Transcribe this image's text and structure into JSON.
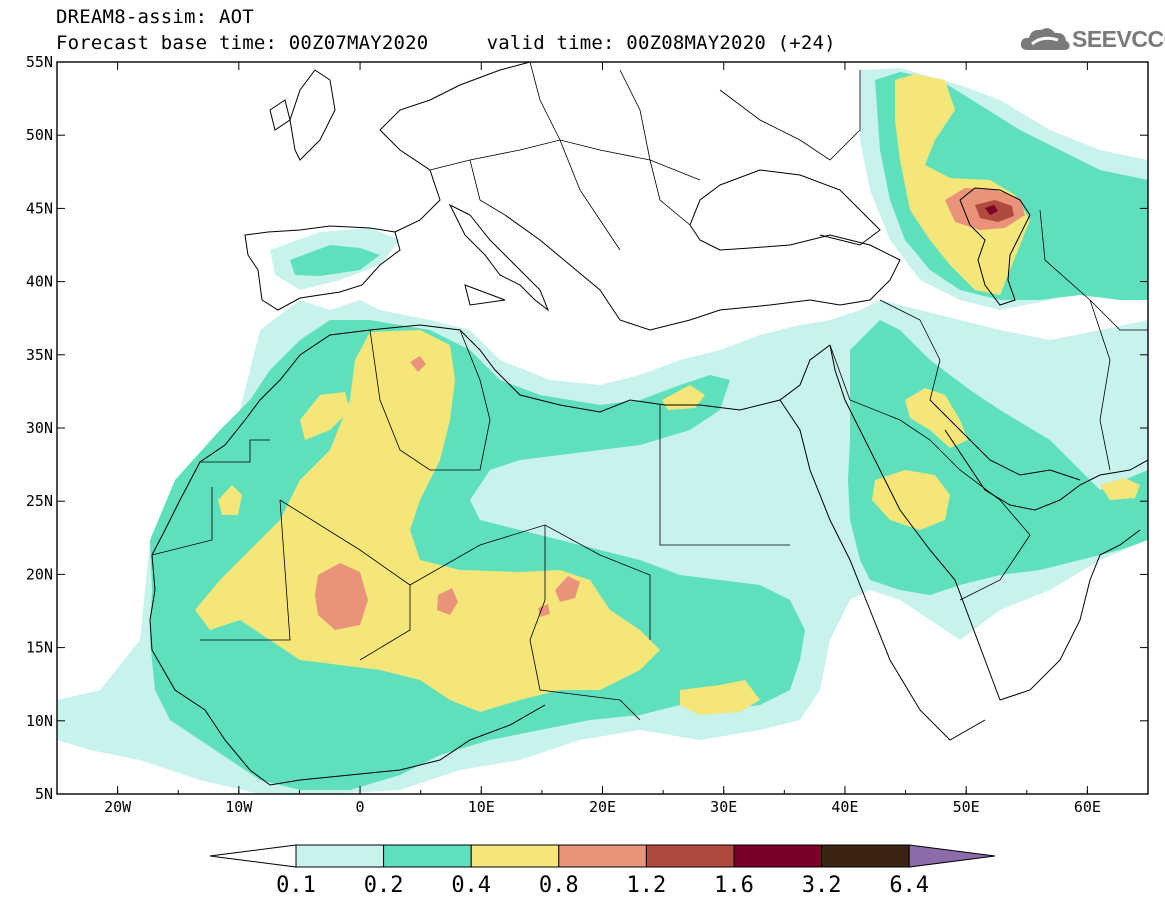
{
  "header": {
    "line1": "DREAM8-assim: AOT",
    "line2": "Forecast base time: 00Z07MAY2020     valid time: 00Z08MAY2020 (+24)",
    "logo_text": "SEEVCCC"
  },
  "map": {
    "lon_range": [
      -25,
      65
    ],
    "lat_range": [
      5,
      55
    ],
    "lon_ticks": [
      {
        "value": -20,
        "label": "20W"
      },
      {
        "value": -10,
        "label": "10W"
      },
      {
        "value": 0,
        "label": "0"
      },
      {
        "value": 10,
        "label": "10E"
      },
      {
        "value": 20,
        "label": "20E"
      },
      {
        "value": 30,
        "label": "30E"
      },
      {
        "value": 40,
        "label": "40E"
      },
      {
        "value": 50,
        "label": "50E"
      },
      {
        "value": 60,
        "label": "60E"
      }
    ],
    "lat_ticks": [
      {
        "value": 55,
        "label": "55N"
      },
      {
        "value": 50,
        "label": "50N"
      },
      {
        "value": 45,
        "label": "45N"
      },
      {
        "value": 40,
        "label": "40N"
      },
      {
        "value": 35,
        "label": "35N"
      },
      {
        "value": 30,
        "label": "30N"
      },
      {
        "value": 25,
        "label": "25N"
      },
      {
        "value": 20,
        "label": "20N"
      },
      {
        "value": 15,
        "label": "15N"
      },
      {
        "value": 10,
        "label": "10N"
      },
      {
        "value": 5,
        "label": "5N"
      }
    ]
  },
  "colorbar": {
    "boundaries": [
      "0.1",
      "0.2",
      "0.4",
      "0.8",
      "1.2",
      "1.6",
      "3.2",
      "6.4"
    ],
    "colors": [
      "#c8f2ec",
      "#5fe0bd",
      "#f5e67a",
      "#e9937a",
      "#b04a3e",
      "#7a0028",
      "#3a2412"
    ],
    "under_color": "#ffffff",
    "over_color": "#8c6ca8"
  },
  "layer_colors": {
    "c01": "#c8f2ec",
    "c02": "#5fe0bd",
    "c04": "#f5e67a",
    "c08": "#e9937a",
    "c12": "#b04a3e",
    "c16": "#7a0028"
  }
}
